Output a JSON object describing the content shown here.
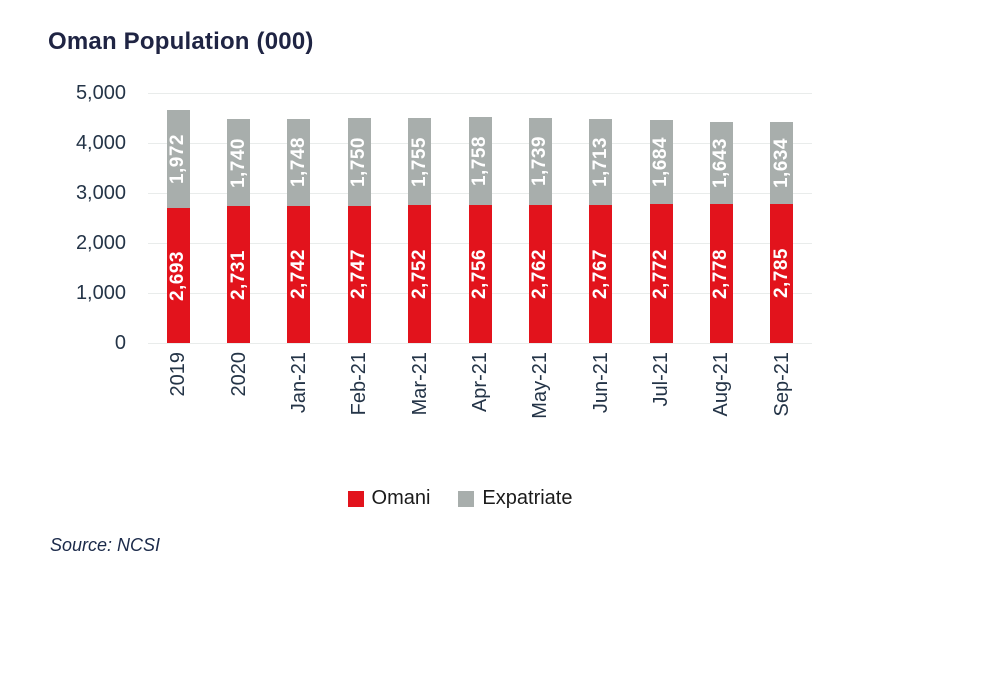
{
  "page": {
    "title": "Oman Population (000)",
    "source": "Source: NCSI"
  },
  "chart_data": {
    "type": "bar",
    "stacked": true,
    "title": "Oman Population (000)",
    "categories": [
      "2019",
      "2020",
      "Jan-21",
      "Feb-21",
      "Mar-21",
      "Apr-21",
      "May-21",
      "Jun-21",
      "Jul-21",
      "Aug-21",
      "Sep-21"
    ],
    "series": [
      {
        "name": "Omani",
        "color": "#e2131c",
        "values": [
          2693,
          2731,
          2742,
          2747,
          2752,
          2756,
          2762,
          2767,
          2772,
          2778,
          2785
        ]
      },
      {
        "name": "Expatriate",
        "color": "#a8aeac",
        "values": [
          1972,
          1740,
          1748,
          1750,
          1755,
          1758,
          1739,
          1713,
          1684,
          1643,
          1634
        ]
      }
    ],
    "xlabel": "",
    "ylabel": "",
    "ylim": [
      0,
      5000
    ],
    "yticks": [
      0,
      1000,
      2000,
      3000,
      4000,
      5000
    ],
    "grid": true,
    "value_labels": true,
    "legend_position": "bottom",
    "source": "Source: NCSI"
  },
  "colors": {
    "title_text": "#1f2443",
    "axis_text": "#243447",
    "gridline": "#e9eceb",
    "value_label_text": "#ffffff",
    "legend_text": "#1b1b1b",
    "source_text": "#1b2a4a",
    "background": "#ffffff"
  }
}
